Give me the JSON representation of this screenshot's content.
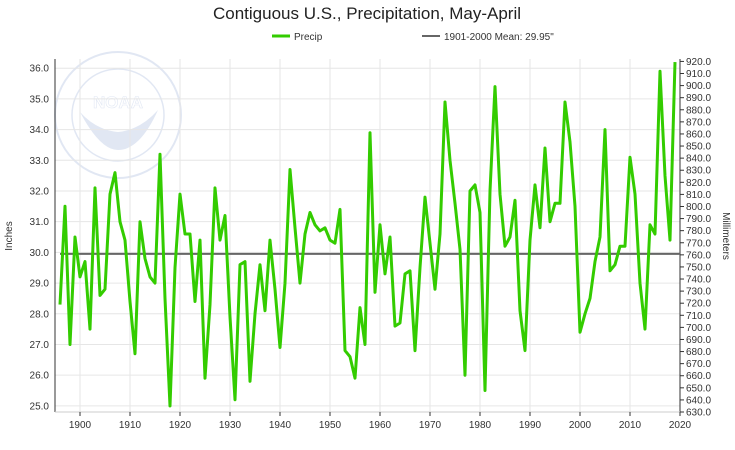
{
  "chart_data": {
    "type": "line",
    "title": "Contiguous U.S., Precipitation, May-April",
    "ylabel": "Inches",
    "ylabel_right": "Millimeters",
    "xlim": [
      1895,
      2020
    ],
    "ylim": [
      24.8,
      36.3
    ],
    "ylim_right_mm": [
      630,
      922
    ],
    "x_ticks": [
      "1900",
      "1910",
      "1920",
      "1930",
      "1940",
      "1950",
      "1960",
      "1970",
      "1980",
      "1990",
      "2000",
      "2010",
      "2020"
    ],
    "y_ticks": [
      "25.0",
      "26.0",
      "27.0",
      "28.0",
      "29.0",
      "30.0",
      "31.0",
      "32.0",
      "33.0",
      "34.0",
      "35.0",
      "36.0"
    ],
    "y_ticks_right": [
      "630.0",
      "640.0",
      "650.0",
      "660.0",
      "670.0",
      "680.0",
      "690.0",
      "700.0",
      "710.0",
      "720.0",
      "730.0",
      "740.0",
      "750.0",
      "760.0",
      "770.0",
      "780.0",
      "790.0",
      "800.0",
      "810.0",
      "820.0",
      "830.0",
      "840.0",
      "850.0",
      "860.0",
      "870.0",
      "880.0",
      "890.0",
      "900.0",
      "910.0",
      "920.0"
    ],
    "grid": true,
    "legend_position": "top-center",
    "series": [
      {
        "name": "Precip",
        "color": "#33cc00",
        "start_year": 1896,
        "values": [
          28.3,
          31.5,
          27.0,
          30.5,
          29.2,
          29.7,
          27.5,
          32.1,
          28.6,
          28.8,
          31.9,
          32.6,
          31.0,
          30.4,
          28.4,
          26.7,
          31.0,
          29.8,
          29.2,
          29.0,
          33.2,
          28.5,
          25.0,
          29.5,
          31.9,
          30.6,
          30.6,
          28.4,
          30.4,
          25.9,
          28.3,
          32.1,
          30.4,
          31.2,
          27.9,
          25.2,
          29.6,
          29.7,
          25.8,
          28.0,
          29.6,
          28.1,
          30.4,
          28.8,
          26.9,
          29.0,
          32.7,
          30.8,
          29.0,
          30.6,
          31.3,
          30.9,
          30.7,
          30.8,
          30.4,
          30.3,
          31.4,
          26.8,
          26.6,
          25.9,
          28.2,
          27.0,
          33.9,
          28.7,
          30.9,
          29.3,
          30.5,
          27.6,
          27.7,
          29.3,
          29.4,
          26.8,
          29.5,
          31.8,
          30.3,
          28.8,
          30.6,
          34.9,
          33.0,
          31.6,
          30.1,
          26.0,
          32.0,
          32.2,
          31.3,
          25.5,
          32.0,
          35.4,
          31.9,
          30.2,
          30.5,
          31.7,
          28.1,
          26.8,
          30.4,
          32.2,
          30.8,
          33.4,
          31.0,
          31.6,
          31.6,
          34.9,
          33.6,
          31.5,
          27.4,
          28.0,
          28.5,
          29.7,
          30.5,
          34.0,
          29.4,
          29.6,
          30.2,
          30.2,
          33.1,
          31.9,
          29.0,
          27.5,
          30.9,
          30.6,
          35.9,
          32.5,
          30.4,
          36.2
        ]
      },
      {
        "name": "1901-2000 Mean: 29.95\"",
        "color": "#666666",
        "mean": 29.95
      }
    ]
  },
  "colors": {
    "grid": "#e6e6e6",
    "axis": "#333333",
    "logo": "#c9d4ea"
  },
  "logo_text": "NOAA"
}
